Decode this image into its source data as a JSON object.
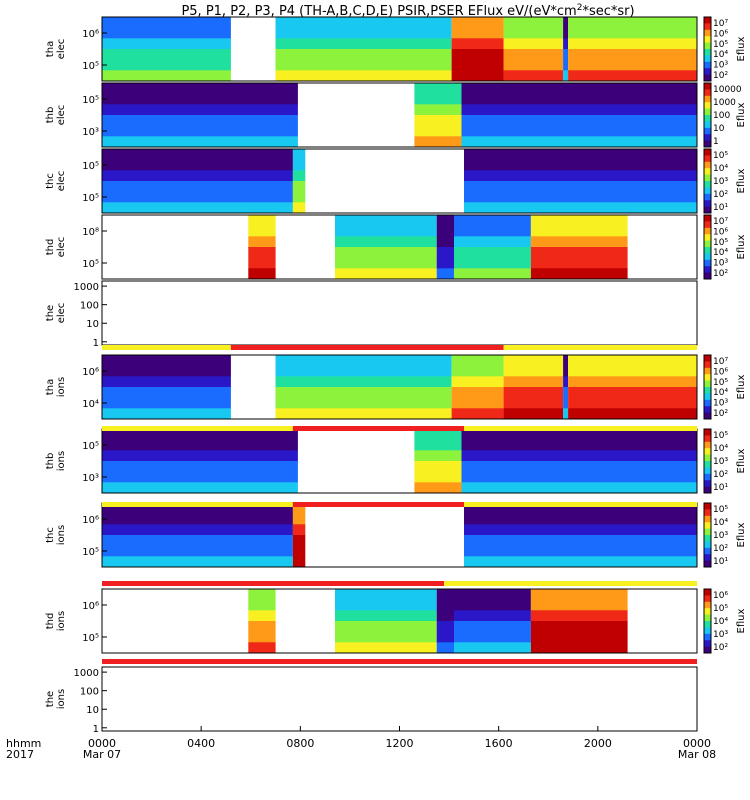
{
  "chart_data": {
    "type": "heatmap",
    "title": "P5, P1, P2, P3, P4 (TH-A,B,C,D,E) PSIR,PSER EFlux eV/(eV*cm",
    "title_sup": "2",
    "title_end": "*sec*sr)",
    "x_time_label": "hhmm",
    "x_year_label": "2017",
    "x_ticks": [
      "0000",
      "0400",
      "0800",
      "1200",
      "1600",
      "2000",
      "0000"
    ],
    "x_dates": [
      "Mar 07",
      "",
      "",
      "",
      "",
      "",
      "Mar 08"
    ],
    "x_range_hours": [
      0,
      24
    ],
    "colormap": [
      "#3b007a",
      "#2a18c8",
      "#1a6cff",
      "#18c8f0",
      "#20e0a0",
      "#8cf23c",
      "#f8f020",
      "#ff9a18",
      "#f02818",
      "#c00000"
    ],
    "panels": [
      {
        "probe": "tha",
        "species": "elec",
        "y_ticks": [
          "10⁶",
          "10⁵"
        ],
        "cb_ticks": [
          "10⁷",
          "10⁶",
          "10⁵",
          "10⁴",
          "10³",
          "10²"
        ],
        "cb_label": "Eflux",
        "segments": [
          [
            0,
            5.2,
            3
          ],
          [
            5.2,
            7,
            -1
          ],
          [
            7,
            14.1,
            4
          ],
          [
            14.1,
            16.2,
            8
          ],
          [
            16.2,
            18.6,
            6
          ],
          [
            18.6,
            18.8,
            1
          ],
          [
            18.8,
            24,
            6
          ]
        ]
      },
      {
        "probe": "thb",
        "species": "elec",
        "y_ticks": [
          "10⁵",
          "10³"
        ],
        "cb_ticks": [
          "10000",
          "1000",
          "100",
          "10",
          "1"
        ],
        "cb_label": "Eflux",
        "segments": [
          [
            0,
            7.9,
            1
          ],
          [
            7.9,
            12.6,
            -1
          ],
          [
            12.6,
            14.5,
            5
          ],
          [
            14.5,
            24,
            1
          ]
        ]
      },
      {
        "probe": "thc",
        "species": "elec",
        "y_ticks": [
          "10⁵",
          "10⁵"
        ],
        "cb_ticks": [
          "10⁵",
          "10⁴",
          "10³",
          "10²",
          "10¹"
        ],
        "cb_label": "Eflux",
        "segments": [
          [
            0,
            7.7,
            1
          ],
          [
            7.7,
            8.2,
            4
          ],
          [
            8.2,
            14.6,
            -1
          ],
          [
            14.6,
            24,
            1
          ]
        ]
      },
      {
        "probe": "thd",
        "species": "elec",
        "y_ticks": [
          "10⁸",
          "10⁵"
        ],
        "cb_ticks": [
          "10⁷",
          "10⁶",
          "10⁵",
          "10⁴",
          "10³",
          "10²"
        ],
        "cb_label": "Eflux",
        "segments": [
          [
            0,
            5.9,
            -1
          ],
          [
            5.9,
            7,
            7
          ],
          [
            7,
            9.4,
            -1
          ],
          [
            9.4,
            13.5,
            4
          ],
          [
            13.5,
            14.2,
            0
          ],
          [
            14.2,
            17.3,
            3
          ],
          [
            17.3,
            21.2,
            7
          ],
          [
            21.2,
            24,
            -1
          ]
        ]
      },
      {
        "probe": "the",
        "species": "elec",
        "y_ticks": [
          "1000",
          "100",
          "10",
          "1"
        ],
        "cb_ticks": [],
        "cb_label": "",
        "segments": []
      },
      {
        "probe": "tha",
        "species": "ions",
        "y_ticks": [
          "10⁶",
          "10⁴"
        ],
        "cb_ticks": [
          "10⁷",
          "10⁶",
          "10⁵",
          "10⁴",
          "10³",
          "10²"
        ],
        "cb_label": "Eflux",
        "segments": [
          [
            0,
            5.2,
            1
          ],
          [
            5.2,
            7,
            -1
          ],
          [
            7,
            14.1,
            4
          ],
          [
            14.1,
            16.2,
            6
          ],
          [
            16.2,
            18.6,
            7
          ],
          [
            18.6,
            18.8,
            1
          ],
          [
            18.8,
            24,
            7
          ]
        ]
      },
      {
        "probe": "thb",
        "species": "ions",
        "y_ticks": [
          "10⁵",
          "10³"
        ],
        "cb_ticks": [
          "10⁵",
          "10⁴",
          "10³",
          "10²",
          "10¹"
        ],
        "cb_label": "Eflux",
        "segments": [
          [
            0,
            7.9,
            1
          ],
          [
            7.9,
            12.6,
            -1
          ],
          [
            12.6,
            14.5,
            5
          ],
          [
            14.5,
            24,
            1
          ]
        ]
      },
      {
        "probe": "thc",
        "species": "ions",
        "y_ticks": [
          "10⁶",
          "10⁵"
        ],
        "cb_ticks": [
          "10⁵",
          "10⁴",
          "10³",
          "10²",
          "10¹"
        ],
        "cb_label": "Eflux",
        "segments": [
          [
            0,
            7.7,
            1
          ],
          [
            7.7,
            8.2,
            8
          ],
          [
            8.2,
            14.6,
            -1
          ],
          [
            14.6,
            24,
            1
          ]
        ]
      },
      {
        "probe": "thd",
        "species": "ions",
        "y_ticks": [
          "10⁶",
          "10⁵"
        ],
        "cb_ticks": [
          "10⁶",
          "10⁵",
          "10⁴",
          "10³",
          "10²"
        ],
        "cb_label": "Eflux",
        "segments": [
          [
            0,
            5.9,
            -1
          ],
          [
            5.9,
            7,
            6
          ],
          [
            7,
            9.4,
            -1
          ],
          [
            9.4,
            13.5,
            4
          ],
          [
            13.5,
            14.2,
            0
          ],
          [
            14.2,
            17.3,
            1
          ],
          [
            17.3,
            21.2,
            8
          ],
          [
            21.2,
            24,
            -1
          ]
        ]
      },
      {
        "probe": "the",
        "species": "ions",
        "y_ticks": [
          "1000",
          "100",
          "10",
          "1"
        ],
        "cb_ticks": [],
        "cb_label": "",
        "segments": []
      }
    ],
    "mode_bars": [
      {
        "after_panel": 4,
        "segments": [
          [
            0,
            5.2,
            "#f8f020"
          ],
          [
            5.2,
            16.2,
            "#f02020"
          ],
          [
            16.2,
            24,
            "#f8f020"
          ]
        ]
      },
      {
        "after_panel": 5,
        "segments": [
          [
            0,
            7.7,
            "#f8f020"
          ],
          [
            7.7,
            14.6,
            "#f02020"
          ],
          [
            14.6,
            24,
            "#f8f020"
          ]
        ]
      },
      {
        "after_panel": 6,
        "segments": [
          [
            0,
            7.7,
            "#f8f020"
          ],
          [
            7.7,
            14.6,
            "#f02020"
          ],
          [
            14.6,
            24,
            "#f8f020"
          ]
        ]
      },
      {
        "after_panel": 7,
        "segments": [
          [
            0,
            13.8,
            "#f02020"
          ],
          [
            13.8,
            24,
            "#f8f020"
          ]
        ]
      },
      {
        "after_panel": 8,
        "segments": [
          [
            0,
            24,
            "#f02020"
          ]
        ]
      }
    ]
  }
}
